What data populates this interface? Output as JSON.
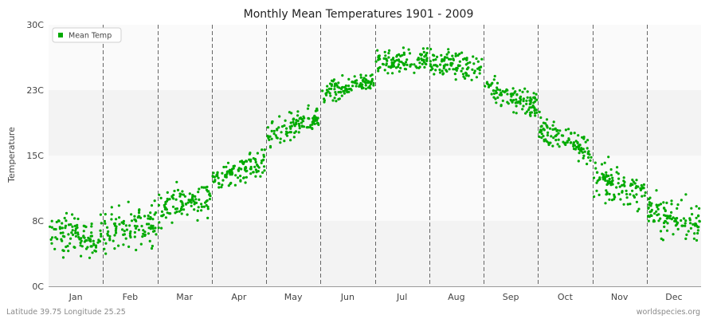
{
  "chart_data": {
    "type": "scatter",
    "title": "Monthly Mean Temperatures 1901 - 2009",
    "xlabel": "",
    "ylabel": "Temperature",
    "y_tick_labels": [
      "0C",
      "8C",
      "15C",
      "23C",
      "30C"
    ],
    "y_tick_values": [
      0,
      7.5,
      15,
      22.5,
      30
    ],
    "ylim": [
      0,
      30
    ],
    "categories": [
      "Jan",
      "Feb",
      "Mar",
      "Apr",
      "May",
      "Jun",
      "Jul",
      "Aug",
      "Sep",
      "Oct",
      "Nov",
      "Dec"
    ],
    "grid": true,
    "legend_position": "top-left",
    "series": [
      {
        "name": "Mean Temp",
        "color": "#00aa00",
        "years": "1901-2009",
        "monthly_ranges": [
          {
            "month": "Jan",
            "min": 2.0,
            "max": 10.5,
            "mean": 5.8
          },
          {
            "month": "Feb",
            "min": 2.5,
            "max": 12.0,
            "mean": 6.8
          },
          {
            "month": "Mar",
            "min": 6.0,
            "max": 13.5,
            "mean": 9.6
          },
          {
            "month": "Apr",
            "min": 10.5,
            "max": 16.5,
            "mean": 13.3
          },
          {
            "month": "May",
            "min": 15.0,
            "max": 21.0,
            "mean": 18.2
          },
          {
            "month": "Jun",
            "min": 20.5,
            "max": 25.0,
            "mean": 22.9
          },
          {
            "month": "Jul",
            "min": 23.5,
            "max": 28.3,
            "mean": 25.8
          },
          {
            "month": "Aug",
            "min": 22.5,
            "max": 28.0,
            "mean": 25.4
          },
          {
            "month": "Sep",
            "min": 18.5,
            "max": 25.0,
            "mean": 21.8
          },
          {
            "month": "Oct",
            "min": 13.5,
            "max": 20.0,
            "mean": 16.8
          },
          {
            "month": "Nov",
            "min": 8.0,
            "max": 15.5,
            "mean": 11.5
          },
          {
            "month": "Dec",
            "min": 2.5,
            "max": 11.0,
            "mean": 7.8
          }
        ]
      }
    ]
  },
  "footer": {
    "location": "Latitude 39.75 Longitude 25.25",
    "credit": "worldspecies.org"
  }
}
